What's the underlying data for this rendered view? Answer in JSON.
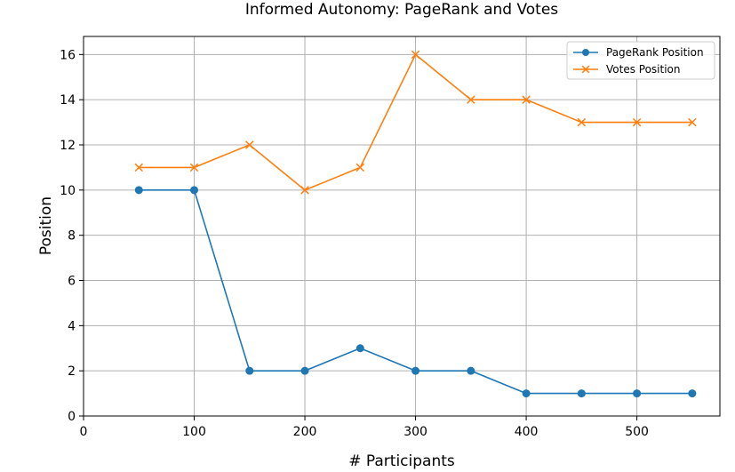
{
  "chart_data": {
    "type": "line",
    "title": "Informed Autonomy: PageRank and Votes",
    "xlabel": "# Participants",
    "ylabel": "Position",
    "xlim": [
      0,
      575
    ],
    "ylim": [
      0,
      16.8
    ],
    "xticks": [
      0,
      100,
      200,
      300,
      400,
      500
    ],
    "yticks": [
      0,
      2,
      4,
      6,
      8,
      10,
      12,
      14,
      16
    ],
    "grid": true,
    "legend_position": "top-right",
    "x": [
      50,
      100,
      150,
      200,
      250,
      300,
      350,
      400,
      450,
      500,
      550
    ],
    "series": [
      {
        "name": "PageRank Position",
        "color": "#1f77b4",
        "marker": "circle",
        "values": [
          10,
          10,
          2,
          2,
          3,
          2,
          2,
          1,
          1,
          1,
          1
        ]
      },
      {
        "name": "Votes Position",
        "color": "#ff7f0e",
        "marker": "x",
        "values": [
          11,
          11,
          12,
          10,
          11,
          16,
          14,
          14,
          13,
          13,
          13
        ]
      }
    ]
  }
}
